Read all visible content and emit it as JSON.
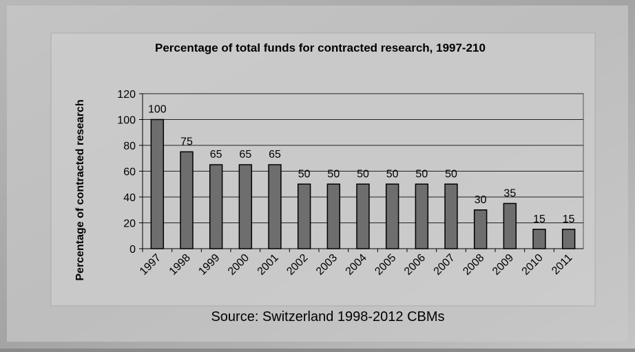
{
  "chart_data": {
    "type": "bar",
    "title": "Percentage of total funds for contracted research, 1997-210",
    "y_label": "Percentage of contracted research",
    "source": "Source: Switzerland 1998-2012 CBMs",
    "categories": [
      "1997",
      "1998",
      "1999",
      "2000",
      "2001",
      "2002",
      "2003",
      "2004",
      "2005",
      "2006",
      "2007",
      "2008",
      "2009",
      "2010",
      "2011"
    ],
    "values": [
      100,
      75,
      65,
      65,
      65,
      50,
      50,
      50,
      50,
      50,
      50,
      30,
      35,
      15,
      15
    ],
    "color": "#6e6e6e",
    "ylim": [
      0,
      120
    ],
    "yticks": [
      0,
      20,
      40,
      60,
      80,
      100,
      120
    ],
    "grid": true
  }
}
